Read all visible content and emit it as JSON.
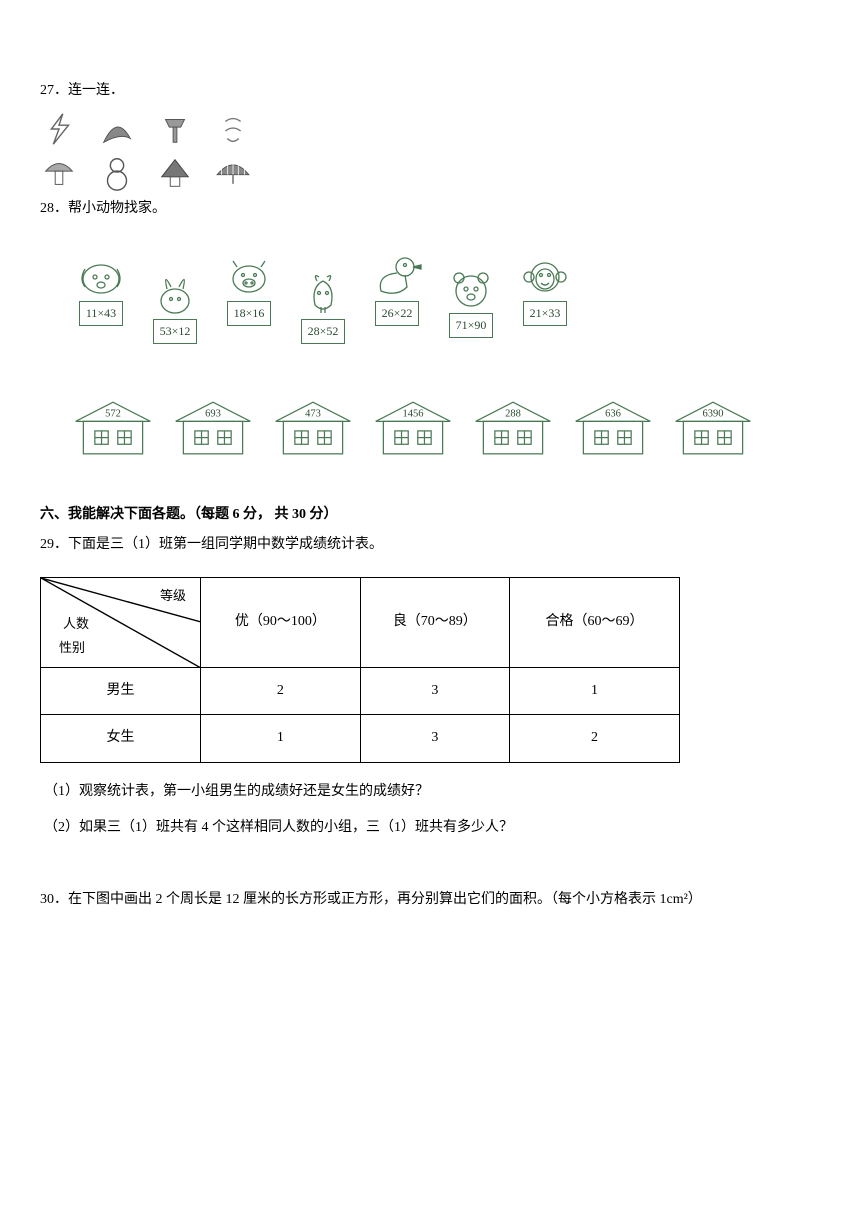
{
  "q27": {
    "title": "27．连一连．",
    "stroke": "#555555"
  },
  "q28": {
    "title": "28．帮小动物找家。",
    "color": "#4a7a55",
    "animals": [
      {
        "expr": "11×43"
      },
      {
        "expr": "53×12"
      },
      {
        "expr": "18×16"
      },
      {
        "expr": "28×52"
      },
      {
        "expr": "26×22"
      },
      {
        "expr": "71×90"
      },
      {
        "expr": "21×33"
      }
    ],
    "houses": [
      "572",
      "693",
      "473",
      "1456",
      "288",
      "636",
      "6390"
    ]
  },
  "section6": {
    "header": "六、我能解决下面各题。（每题 6 分， 共 30 分）"
  },
  "q29": {
    "title": "29．下面是三（1）班第一组同学期中数学成绩统计表。",
    "diag_labels": {
      "top": "等级",
      "mid": "人数",
      "bot": "性别"
    },
    "cols": [
      "优（90～100）",
      "良（70～89）",
      "合格（60～69）"
    ],
    "rows": [
      {
        "label": "男生",
        "vals": [
          "2",
          "3",
          "1"
        ]
      },
      {
        "label": "女生",
        "vals": [
          "1",
          "3",
          "2"
        ]
      }
    ],
    "sub1": "（1）观察统计表，第一小组男生的成绩好还是女生的成绩好？",
    "sub2": "（2）如果三（1）班共有 4 个这样相同人数的小组，三（1）班共有多少人？"
  },
  "q30": {
    "title": "30．在下图中画出 2 个周长是 12 厘米的长方形或正方形，再分别算出它们的面积。（每个小方格表示 1cm²）"
  }
}
